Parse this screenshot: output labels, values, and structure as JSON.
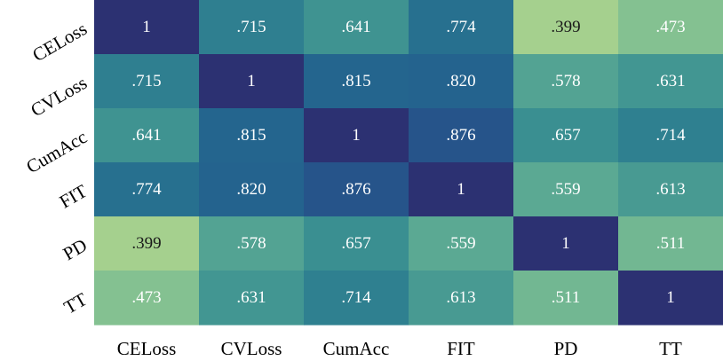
{
  "chart_data": {
    "type": "heatmap",
    "title": "",
    "xlabel": "",
    "ylabel": "",
    "x_categories": [
      "CELoss",
      "CVLoss",
      "CumAcc",
      "FIT",
      "PD",
      "TT"
    ],
    "y_categories": [
      "CELoss",
      "CVLoss",
      "CumAcc",
      "FIT",
      "PD",
      "TT"
    ],
    "values": [
      [
        1,
        0.715,
        0.641,
        0.774,
        0.399,
        0.473
      ],
      [
        0.715,
        1,
        0.815,
        0.82,
        0.578,
        0.631
      ],
      [
        0.641,
        0.815,
        1,
        0.876,
        0.657,
        0.714
      ],
      [
        0.774,
        0.82,
        0.876,
        1,
        0.559,
        0.613
      ],
      [
        0.399,
        0.578,
        0.657,
        0.559,
        1,
        0.511
      ],
      [
        0.473,
        0.631,
        0.714,
        0.613,
        0.511,
        1
      ]
    ],
    "cell_labels": [
      [
        "1",
        ".715",
        ".641",
        ".774",
        ".399",
        ".473"
      ],
      [
        ".715",
        "1",
        ".815",
        ".820",
        ".578",
        ".631"
      ],
      [
        ".641",
        ".815",
        "1",
        ".876",
        ".657",
        ".714"
      ],
      [
        ".774",
        ".820",
        ".876",
        "1",
        ".559",
        ".613"
      ],
      [
        ".399",
        ".578",
        ".657",
        ".559",
        "1",
        ".511"
      ],
      [
        ".473",
        ".631",
        ".714",
        ".613",
        ".511",
        "1"
      ]
    ],
    "color_scale": {
      "name": "crest",
      "min": 0.399,
      "max": 1,
      "stops": [
        "#a5d08e",
        "#7fbf92",
        "#55a593",
        "#3a8f91",
        "#2a7890",
        "#23618e",
        "#284a86",
        "#2c3172"
      ]
    },
    "label_colors": {
      "dark_text": "#1a1a1a",
      "light_text": "#ffffff"
    },
    "grid": false,
    "legend": "none"
  }
}
